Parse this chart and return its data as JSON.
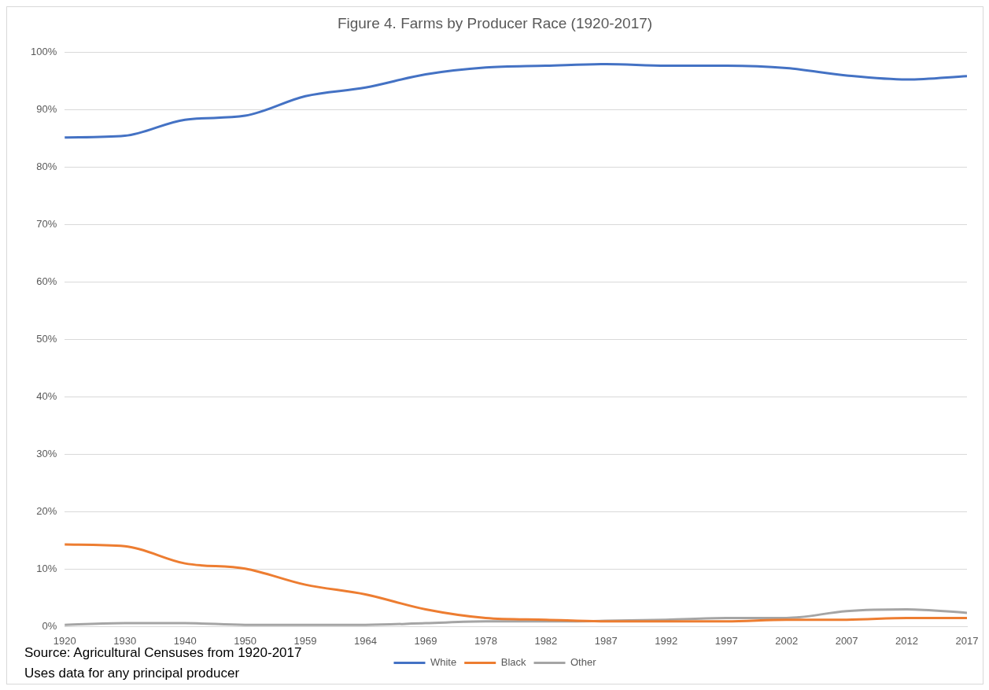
{
  "chart_data": {
    "type": "line",
    "title": "Figure 4. Farms by Producer Race (1920-2017)",
    "categories": [
      "1920",
      "1930",
      "1940",
      "1950",
      "1959",
      "1964",
      "1969",
      "1978",
      "1982",
      "1987",
      "1992",
      "1997",
      "2002",
      "2007",
      "2012",
      "2017"
    ],
    "series": [
      {
        "name": "White",
        "color": "#4472c4",
        "values": [
          85.2,
          85.5,
          88.3,
          89.0,
          92.4,
          93.9,
          96.2,
          97.4,
          97.7,
          98.0,
          97.7,
          97.7,
          97.3,
          96.0,
          95.3,
          95.9
        ]
      },
      {
        "name": "Black",
        "color": "#ed7d31",
        "values": [
          14.3,
          14.0,
          11.0,
          10.1,
          7.3,
          5.6,
          3.0,
          1.5,
          1.2,
          0.9,
          0.9,
          0.9,
          1.2,
          1.2,
          1.5,
          1.5
        ]
      },
      {
        "name": "Other",
        "color": "#a5a5a5",
        "values": [
          0.3,
          0.6,
          0.6,
          0.3,
          0.3,
          0.3,
          0.6,
          0.9,
          0.9,
          1.0,
          1.2,
          1.5,
          1.5,
          2.7,
          3.0,
          2.4
        ]
      }
    ],
    "ylim": [
      0,
      100
    ],
    "yticks": [
      {
        "value": 0,
        "label": "0%"
      },
      {
        "value": 10,
        "label": "10%"
      },
      {
        "value": 20,
        "label": "20%"
      },
      {
        "value": 30,
        "label": "30%"
      },
      {
        "value": 40,
        "label": "40%"
      },
      {
        "value": 50,
        "label": "50%"
      },
      {
        "value": 60,
        "label": "60%"
      },
      {
        "value": 70,
        "label": "70%"
      },
      {
        "value": 80,
        "label": "80%"
      },
      {
        "value": 90,
        "label": "90%"
      },
      {
        "value": 100,
        "label": "100%"
      }
    ],
    "grid": "y",
    "legend": "bottom",
    "marker": "none",
    "line_style": "solid",
    "annotations": [
      "Source: Agricultural Censuses from 1920-2017",
      "Uses data for any principal producer"
    ]
  }
}
